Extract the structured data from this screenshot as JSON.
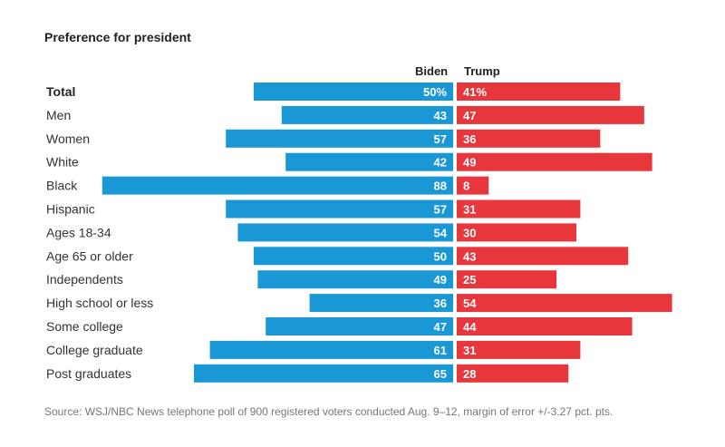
{
  "title": "Preference for president",
  "source": "Source: WSJ/NBC News telephone poll of 900 registered voters conducted Aug. 9–12, margin of error +/-3.27 pct. pts.",
  "colors": {
    "biden": "#1a98d5",
    "trump": "#e8363d"
  },
  "chart_data": {
    "type": "bar",
    "orientation": "horizontal-diverging",
    "categories": [
      "Total",
      "Men",
      "Women",
      "White",
      "Black",
      "Hispanic",
      "Ages 18-34",
      "Age 65 or older",
      "Independents",
      "High school or less",
      "Some college",
      "College graduate",
      "Post graduates"
    ],
    "series": [
      {
        "name": "Biden",
        "values": [
          50,
          43,
          57,
          42,
          88,
          57,
          54,
          50,
          49,
          36,
          47,
          61,
          65
        ],
        "labels": [
          "50%",
          "43",
          "57",
          "42",
          "88",
          "57",
          "54",
          "50",
          "49",
          "36",
          "47",
          "61",
          "65"
        ]
      },
      {
        "name": "Trump",
        "values": [
          41,
          47,
          36,
          49,
          8,
          31,
          30,
          43,
          25,
          54,
          44,
          31,
          28
        ],
        "labels": [
          "41%",
          "47",
          "36",
          "49",
          "8",
          "31",
          "30",
          "43",
          "25",
          "54",
          "44",
          "31",
          "28"
        ]
      }
    ],
    "xlim": [
      0,
      100
    ],
    "grid": false,
    "legend": "top-center"
  }
}
